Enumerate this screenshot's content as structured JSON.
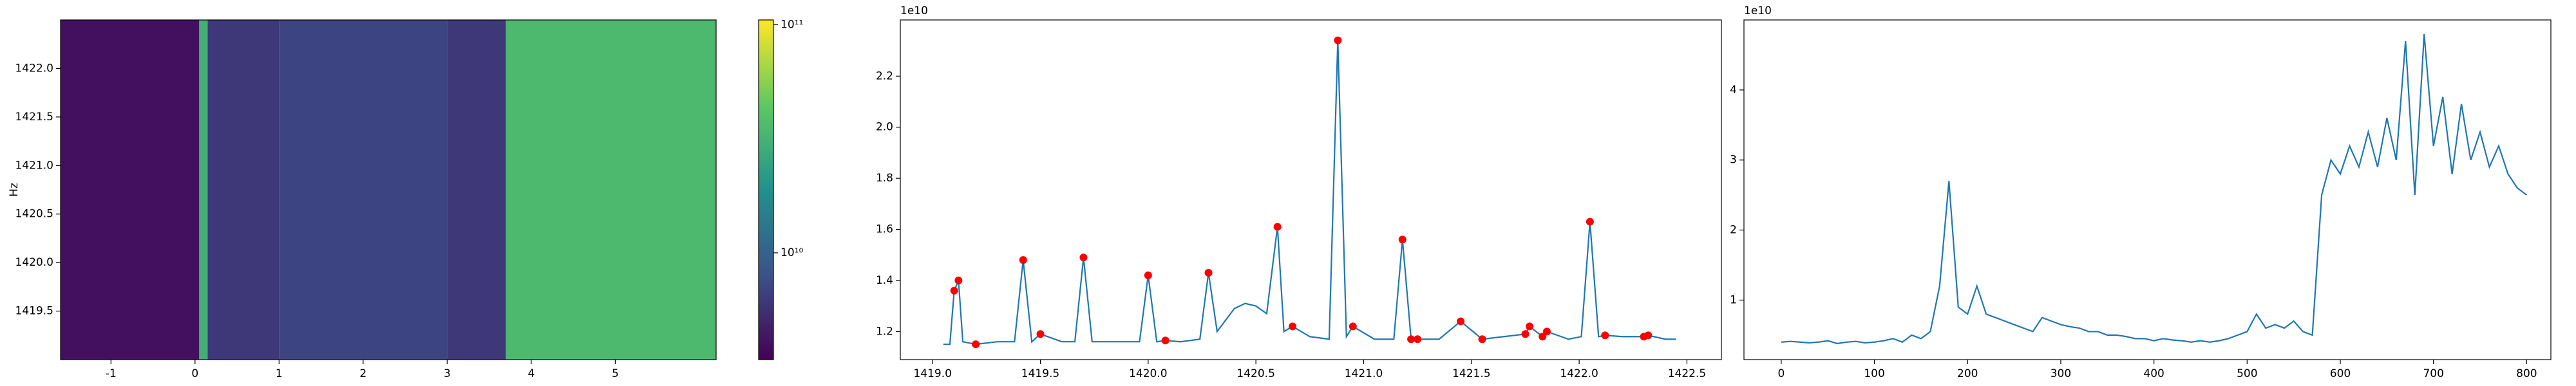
{
  "chart_data": [
    {
      "type": "heatmap",
      "ylabel": "Hz",
      "xlim": [
        -1.6,
        6.2
      ],
      "ylim": [
        1419.0,
        1422.5
      ],
      "xticks": [
        -1,
        0,
        1,
        2,
        3,
        4,
        5
      ],
      "yticks": [
        1419.5,
        {
          "value": 1420,
          "label": "1420.0"
        },
        1420.5,
        {
          "value": 1421,
          "label": "1421.0"
        },
        1421.5,
        {
          "value": 1422,
          "label": "1422.0"
        }
      ],
      "colormap": "viridis",
      "color_log": true,
      "clim": [
        3400000000,
        105000000000
      ],
      "cticks": [
        {
          "value": 10000000000,
          "label": "10¹⁰"
        },
        {
          "value": 100000000000,
          "label": "10¹¹"
        }
      ],
      "bands": [
        {
          "x0": -1.6,
          "x1": 0.05,
          "value": 4000000000
        },
        {
          "x0": 0.05,
          "x1": 0.15,
          "value": 30000000000
        },
        {
          "x0": 0.15,
          "x1": 1.0,
          "value": 6000000000
        },
        {
          "x0": 1.0,
          "x1": 3.0,
          "value": 7000000000
        },
        {
          "x0": 3.0,
          "x1": 3.7,
          "value": 6000000000
        },
        {
          "x0": 3.7,
          "x1": 6.2,
          "value": 35000000000
        }
      ]
    },
    {
      "type": "line",
      "offset_label": "1e10",
      "xlim": [
        1418.85,
        1422.66
      ],
      "ylim": [
        1.09,
        2.42
      ],
      "xticks": [
        {
          "value": 1419,
          "label": "1419.0"
        },
        1419.5,
        {
          "value": 1420,
          "label": "1420.0"
        },
        1420.5,
        {
          "value": 1421,
          "label": "1421.0"
        },
        1421.5,
        {
          "value": 1422,
          "label": "1422.0"
        },
        1422.5
      ],
      "yticks": [
        1.2,
        1.4,
        1.6,
        1.8,
        {
          "value": 2,
          "label": "2.0"
        },
        2.2
      ],
      "series": [
        {
          "color": "#1f77b4",
          "x": [
            1419.05,
            1419.08,
            1419.1,
            1419.12,
            1419.14,
            1419.2,
            1419.3,
            1419.38,
            1419.42,
            1419.46,
            1419.5,
            1419.6,
            1419.66,
            1419.7,
            1419.74,
            1419.8,
            1419.9,
            1419.96,
            1420.0,
            1420.04,
            1420.08,
            1420.15,
            1420.24,
            1420.28,
            1420.32,
            1420.4,
            1420.45,
            1420.5,
            1420.55,
            1420.6,
            1420.63,
            1420.67,
            1420.75,
            1420.84,
            1420.88,
            1420.92,
            1420.95,
            1421.05,
            1421.14,
            1421.18,
            1421.22,
            1421.25,
            1421.35,
            1421.45,
            1421.55,
            1421.65,
            1421.75,
            1421.77,
            1421.83,
            1421.85,
            1421.95,
            1422.01,
            1422.05,
            1422.09,
            1422.12,
            1422.2,
            1422.3,
            1422.32,
            1422.4,
            1422.45
          ],
          "values": [
            1.15,
            1.15,
            1.36,
            1.4,
            1.16,
            1.15,
            1.16,
            1.16,
            1.48,
            1.16,
            1.19,
            1.16,
            1.16,
            1.49,
            1.16,
            1.16,
            1.16,
            1.16,
            1.42,
            1.16,
            1.165,
            1.16,
            1.17,
            1.43,
            1.2,
            1.29,
            1.31,
            1.3,
            1.27,
            1.61,
            1.2,
            1.22,
            1.18,
            1.17,
            2.34,
            1.18,
            1.22,
            1.17,
            1.17,
            1.56,
            1.17,
            1.17,
            1.17,
            1.24,
            1.17,
            1.18,
            1.19,
            1.22,
            1.18,
            1.2,
            1.17,
            1.18,
            1.63,
            1.18,
            1.185,
            1.18,
            1.18,
            1.185,
            1.17,
            1.17
          ]
        }
      ],
      "peaks": {
        "color": "#ff0000",
        "x": [
          1419.1,
          1419.12,
          1419.2,
          1419.42,
          1419.5,
          1419.7,
          1420.0,
          1420.08,
          1420.28,
          1420.6,
          1420.67,
          1420.88,
          1420.95,
          1421.18,
          1421.22,
          1421.25,
          1421.45,
          1421.55,
          1421.75,
          1421.77,
          1421.83,
          1421.85,
          1422.05,
          1422.12,
          1422.3,
          1422.32
        ],
        "values": [
          1.36,
          1.4,
          1.15,
          1.48,
          1.19,
          1.49,
          1.42,
          1.165,
          1.43,
          1.61,
          1.22,
          2.34,
          1.22,
          1.56,
          1.17,
          1.17,
          1.24,
          1.17,
          1.19,
          1.22,
          1.18,
          1.2,
          1.63,
          1.185,
          1.18,
          1.185
        ]
      }
    },
    {
      "type": "line",
      "offset_label": "1e10",
      "xlim": [
        -40,
        826
      ],
      "ylim": [
        0.15,
        5.0
      ],
      "xticks": [
        0,
        100,
        200,
        300,
        400,
        500,
        600,
        700,
        800
      ],
      "yticks": [
        1,
        2,
        3,
        4
      ],
      "series": [
        {
          "color": "#1f77b4",
          "x": [
            0,
            10,
            20,
            30,
            40,
            50,
            60,
            70,
            80,
            90,
            100,
            110,
            120,
            130,
            140,
            150,
            160,
            170,
            180,
            190,
            200,
            210,
            220,
            230,
            240,
            250,
            260,
            270,
            280,
            290,
            300,
            310,
            320,
            330,
            340,
            350,
            360,
            370,
            380,
            390,
            400,
            410,
            420,
            430,
            440,
            450,
            460,
            470,
            480,
            490,
            500,
            510,
            520,
            530,
            540,
            550,
            560,
            570,
            580,
            590,
            600,
            610,
            620,
            630,
            640,
            650,
            660,
            670,
            680,
            690,
            700,
            710,
            720,
            730,
            740,
            750,
            760,
            770,
            780,
            790,
            800
          ],
          "values": [
            0.4,
            0.41,
            0.4,
            0.39,
            0.4,
            0.42,
            0.38,
            0.4,
            0.41,
            0.39,
            0.4,
            0.42,
            0.45,
            0.4,
            0.5,
            0.45,
            0.55,
            1.2,
            2.7,
            0.9,
            0.8,
            1.2,
            0.8,
            0.75,
            0.7,
            0.65,
            0.6,
            0.55,
            0.75,
            0.7,
            0.65,
            0.62,
            0.6,
            0.55,
            0.55,
            0.5,
            0.5,
            0.48,
            0.45,
            0.45,
            0.42,
            0.45,
            0.43,
            0.42,
            0.4,
            0.42,
            0.4,
            0.42,
            0.45,
            0.5,
            0.55,
            0.8,
            0.6,
            0.65,
            0.6,
            0.7,
            0.55,
            0.5,
            2.5,
            3.0,
            2.8,
            3.2,
            2.9,
            3.4,
            2.9,
            3.6,
            3.0,
            4.7,
            2.5,
            4.8,
            3.2,
            3.9,
            2.8,
            3.8,
            3.0,
            3.4,
            2.9,
            3.2,
            2.8,
            2.6,
            2.5
          ]
        }
      ]
    }
  ]
}
